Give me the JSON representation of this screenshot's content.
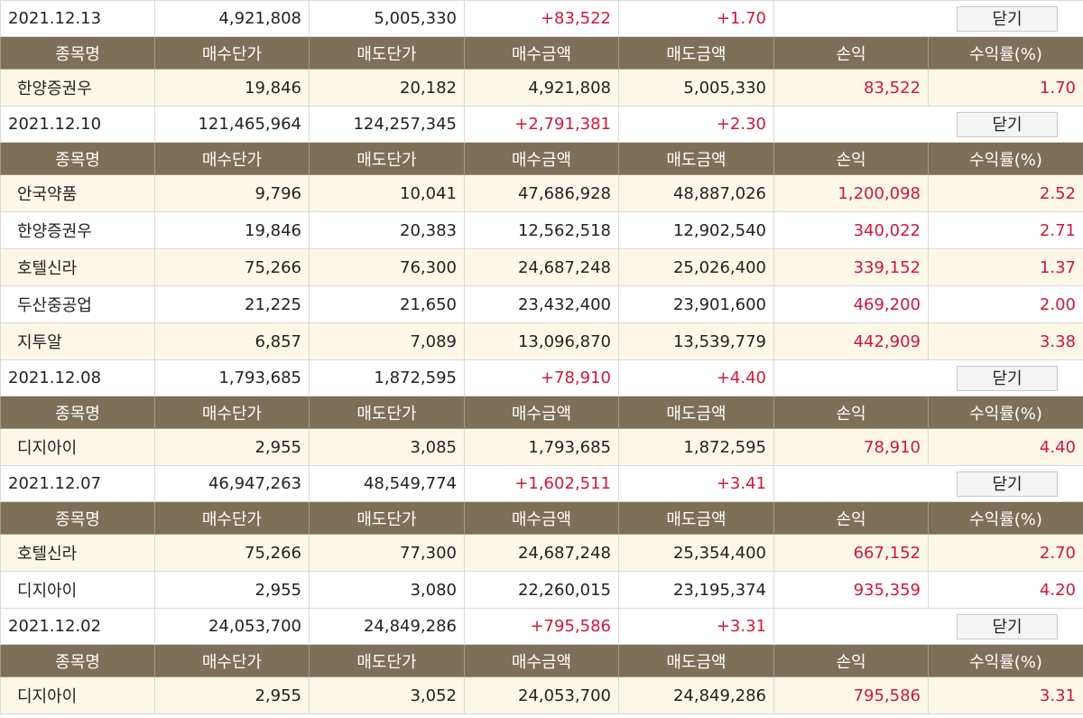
{
  "headers": [
    "종목명",
    "매수단가",
    "매도단가",
    "매수금액",
    "매도금액",
    "손익",
    "수익률(%)"
  ],
  "close_label": "닫기",
  "groups": [
    {
      "date": "2021.12.13",
      "buy_total": "4,921,808",
      "sell_total": "5,005,330",
      "profit": "+83,522",
      "rate": "+1.70",
      "items": [
        {
          "name": "한양증권우",
          "buy_price": "19,846",
          "sell_price": "20,182",
          "buy_amount": "4,921,808",
          "sell_amount": "5,005,330",
          "profit": "83,522",
          "rate": "1.70"
        }
      ]
    },
    {
      "date": "2021.12.10",
      "buy_total": "121,465,964",
      "sell_total": "124,257,345",
      "profit": "+2,791,381",
      "rate": "+2.30",
      "items": [
        {
          "name": "안국약품",
          "buy_price": "9,796",
          "sell_price": "10,041",
          "buy_amount": "47,686,928",
          "sell_amount": "48,887,026",
          "profit": "1,200,098",
          "rate": "2.52"
        },
        {
          "name": "한양증권우",
          "buy_price": "19,846",
          "sell_price": "20,383",
          "buy_amount": "12,562,518",
          "sell_amount": "12,902,540",
          "profit": "340,022",
          "rate": "2.71"
        },
        {
          "name": "호텔신라",
          "buy_price": "75,266",
          "sell_price": "76,300",
          "buy_amount": "24,687,248",
          "sell_amount": "25,026,400",
          "profit": "339,152",
          "rate": "1.37"
        },
        {
          "name": "두산중공업",
          "buy_price": "21,225",
          "sell_price": "21,650",
          "buy_amount": "23,432,400",
          "sell_amount": "23,901,600",
          "profit": "469,200",
          "rate": "2.00"
        },
        {
          "name": "지투알",
          "buy_price": "6,857",
          "sell_price": "7,089",
          "buy_amount": "13,096,870",
          "sell_amount": "13,539,779",
          "profit": "442,909",
          "rate": "3.38"
        }
      ]
    },
    {
      "date": "2021.12.08",
      "buy_total": "1,793,685",
      "sell_total": "1,872,595",
      "profit": "+78,910",
      "rate": "+4.40",
      "items": [
        {
          "name": "디지아이",
          "buy_price": "2,955",
          "sell_price": "3,085",
          "buy_amount": "1,793,685",
          "sell_amount": "1,872,595",
          "profit": "78,910",
          "rate": "4.40"
        }
      ]
    },
    {
      "date": "2021.12.07",
      "buy_total": "46,947,263",
      "sell_total": "48,549,774",
      "profit": "+1,602,511",
      "rate": "+3.41",
      "items": [
        {
          "name": "호텔신라",
          "buy_price": "75,266",
          "sell_price": "77,300",
          "buy_amount": "24,687,248",
          "sell_amount": "25,354,400",
          "profit": "667,152",
          "rate": "2.70"
        },
        {
          "name": "디지아이",
          "buy_price": "2,955",
          "sell_price": "3,080",
          "buy_amount": "22,260,015",
          "sell_amount": "23,195,374",
          "profit": "935,359",
          "rate": "4.20"
        }
      ]
    },
    {
      "date": "2021.12.02",
      "buy_total": "24,053,700",
      "sell_total": "24,849,286",
      "profit": "+795,586",
      "rate": "+3.31",
      "items": [
        {
          "name": "디지아이",
          "buy_price": "2,955",
          "sell_price": "3,052",
          "buy_amount": "24,053,700",
          "sell_amount": "24,849,286",
          "profit": "795,586",
          "rate": "3.31"
        }
      ]
    }
  ]
}
